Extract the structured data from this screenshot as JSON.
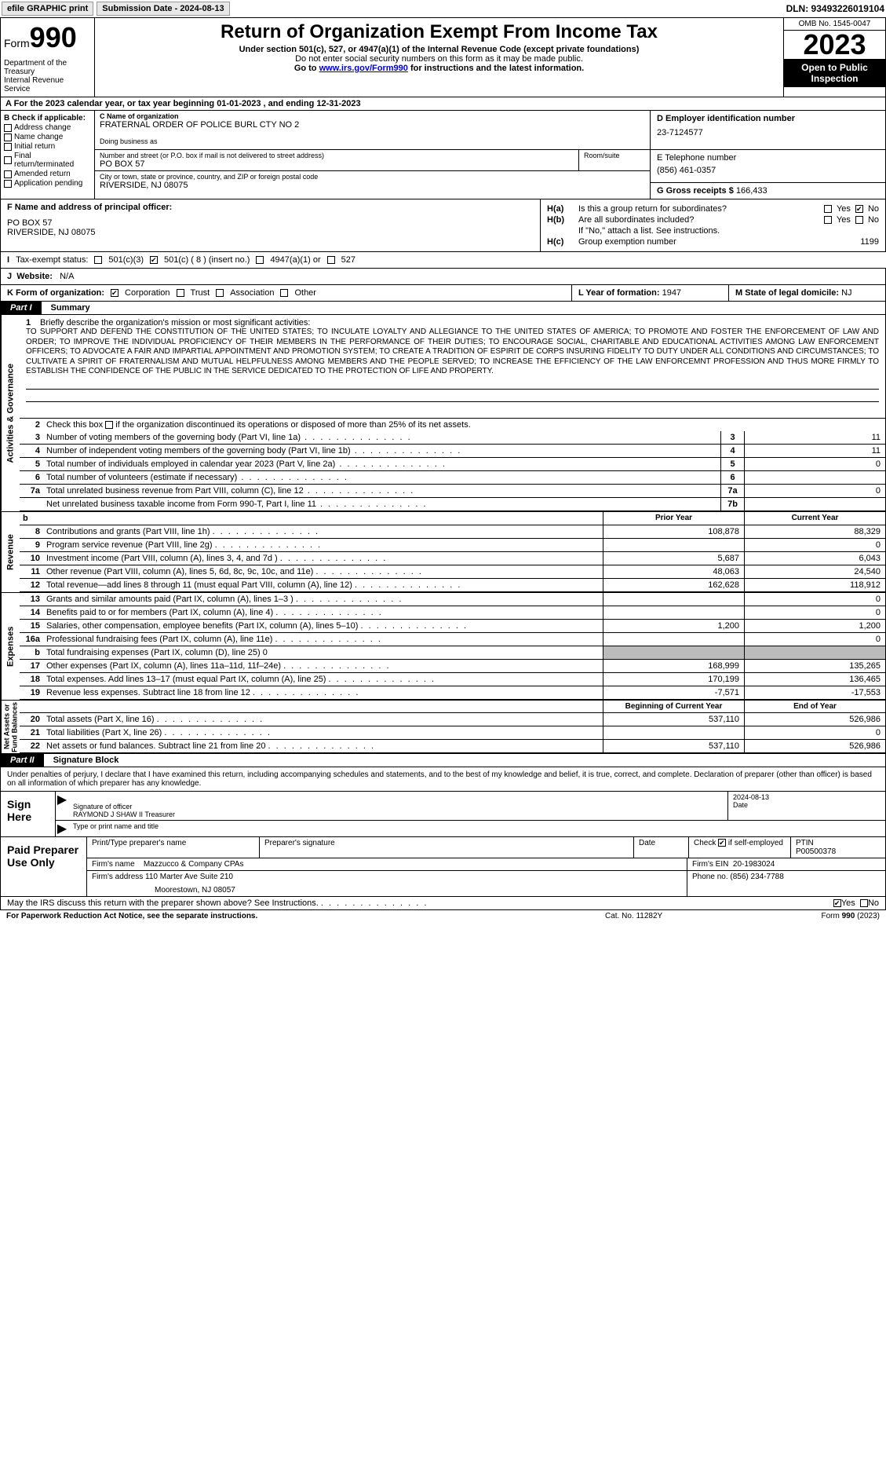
{
  "topbar": {
    "efile": "efile GRAPHIC print",
    "submission": "Submission Date - 2024-08-13",
    "dln": "DLN: 93493226019104"
  },
  "header": {
    "form_label": "Form",
    "form_num": "990",
    "title": "Return of Organization Exempt From Income Tax",
    "sub1": "Under section 501(c), 527, or 4947(a)(1) of the Internal Revenue Code (except private foundations)",
    "sub2": "Do not enter social security numbers on this form as it may be made public.",
    "sub3_pre": "Go to ",
    "sub3_link": "www.irs.gov/Form990",
    "sub3_post": " for instructions and the latest information.",
    "dept": "Department of the Treasury\nInternal Revenue Service",
    "omb": "OMB No. 1545-0047",
    "year": "2023",
    "inspect": "Open to Public Inspection"
  },
  "row_a": "A For the 2023 calendar year, or tax year beginning 01-01-2023   , and ending 12-31-2023",
  "section_b": {
    "hdr": "B Check if applicable:",
    "opts": [
      "Address change",
      "Name change",
      "Initial return",
      "Final return/terminated",
      "Amended return",
      "Application pending"
    ]
  },
  "section_c": {
    "name_lbl": "C Name of organization",
    "name": "FRATERNAL ORDER OF POLICE BURL CTY NO 2",
    "dba_lbl": "Doing business as",
    "addr_lbl": "Number and street (or P.O. box if mail is not delivered to street address)",
    "addr": "PO BOX 57",
    "room_lbl": "Room/suite",
    "city_lbl": "City or town, state or province, country, and ZIP or foreign postal code",
    "city": "RIVERSIDE, NJ  08075"
  },
  "section_d": {
    "lbl": "D Employer identification number",
    "val": "23-7124577"
  },
  "section_e": {
    "lbl": "E Telephone number",
    "val": "(856) 461-0357"
  },
  "section_g": {
    "lbl": "G Gross receipts $",
    "val": "166,433"
  },
  "section_f": {
    "lbl": "F  Name and address of principal officer:",
    "l1": "PO BOX 57",
    "l2": "RIVERSIDE, NJ  08075"
  },
  "section_h": {
    "ha": "Is this a group return for subordinates?",
    "hb": "Are all subordinates included?",
    "hb_note": "If \"No,\" attach a list. See instructions.",
    "hc": "Group exemption number",
    "hc_val": "1199",
    "yes": "Yes",
    "no": "No"
  },
  "row_i": {
    "lbl": "Tax-exempt status:",
    "o1": "501(c)(3)",
    "o2": "501(c) ( 8 ) (insert no.)",
    "o3": "4947(a)(1) or",
    "o4": "527"
  },
  "row_j": {
    "lbl": "Website:",
    "val": "N/A"
  },
  "row_k": {
    "lbl": "K Form of organization:",
    "o1": "Corporation",
    "o2": "Trust",
    "o3": "Association",
    "o4": "Other"
  },
  "row_l": {
    "lbl": "L Year of formation:",
    "val": "1947"
  },
  "row_m": {
    "lbl": "M State of legal domicile:",
    "val": "NJ"
  },
  "part1": {
    "num": "Part I",
    "title": "Summary"
  },
  "mission": {
    "lbl": "Briefly describe the organization's mission or most significant activities:",
    "text": "TO SUPPORT AND DEFEND THE CONSTITUTION OF THE UNITED STATES; TO INCULATE LOYALTY AND ALLEGIANCE TO THE UNITED STATES OF AMERICA; TO PROMOTE AND FOSTER THE ENFORCEMENT OF LAW AND ORDER; TO IMPROVE THE INDIVIDUAL PROFICIENCY OF THEIR MEMBERS IN THE PERFORMANCE OF THEIR DUTIES; TO ENCOURAGE SOCIAL, CHARITABLE AND EDUCATIONAL ACTIVITIES AMONG LAW ENFORCEMENT OFFICERS; TO ADVOCATE A FAIR AND IMPARTIAL APPOINTMENT AND PROMOTION SYSTEM; TO CREATE A TRADITION OF ESPIRIT DE CORPS INSURING FIDELITY TO DUTY UNDER ALL CONDITIONS AND CIRCUMSTANCES; TO CULTIVATE A SPIRIT OF FRATERNALISM AND MUTUAL HELPFULNESS AMONG MEMBERS AND THE PEOPLE SERVED; TO INCREASE THE EFFICIENCY OF THE LAW ENFORCEMNT PROFESSION AND THUS MORE FIRMLY TO ESTABLISH THE CONFIDENCE OF THE PUBLIC IN THE SERVICE DEDICATED TO THE PROTECTION OF LIFE AND PROPERTY."
  },
  "line2": "Check this box      if the organization discontinued its operations or disposed of more than 25% of its net assets.",
  "vtabs": {
    "ag": "Activities & Governance",
    "rev": "Revenue",
    "exp": "Expenses",
    "na": "Net Assets or\nFund Balances"
  },
  "gov_lines": [
    {
      "n": "3",
      "d": "Number of voting members of the governing body (Part VI, line 1a)",
      "bn": "3",
      "v": "11"
    },
    {
      "n": "4",
      "d": "Number of independent voting members of the governing body (Part VI, line 1b)",
      "bn": "4",
      "v": "11"
    },
    {
      "n": "5",
      "d": "Total number of individuals employed in calendar year 2023 (Part V, line 2a)",
      "bn": "5",
      "v": "0"
    },
    {
      "n": "6",
      "d": "Total number of volunteers (estimate if necessary)",
      "bn": "6",
      "v": ""
    },
    {
      "n": "7a",
      "d": "Total unrelated business revenue from Part VIII, column (C), line 12",
      "bn": "7a",
      "v": "0"
    },
    {
      "n": "",
      "d": "Net unrelated business taxable income from Form 990-T, Part I, line 11",
      "bn": "7b",
      "v": ""
    }
  ],
  "col_hdrs": {
    "b": "b",
    "py": "Prior Year",
    "cy": "Current Year",
    "bcy": "Beginning of Current Year",
    "eoy": "End of Year"
  },
  "rev_lines": [
    {
      "n": "8",
      "d": "Contributions and grants (Part VIII, line 1h)",
      "py": "108,878",
      "cy": "88,329"
    },
    {
      "n": "9",
      "d": "Program service revenue (Part VIII, line 2g)",
      "py": "",
      "cy": "0"
    },
    {
      "n": "10",
      "d": "Investment income (Part VIII, column (A), lines 3, 4, and 7d )",
      "py": "5,687",
      "cy": "6,043"
    },
    {
      "n": "11",
      "d": "Other revenue (Part VIII, column (A), lines 5, 6d, 8c, 9c, 10c, and 11e)",
      "py": "48,063",
      "cy": "24,540"
    },
    {
      "n": "12",
      "d": "Total revenue—add lines 8 through 11 (must equal Part VIII, column (A), line 12)",
      "py": "162,628",
      "cy": "118,912"
    }
  ],
  "exp_lines": [
    {
      "n": "13",
      "d": "Grants and similar amounts paid (Part IX, column (A), lines 1–3 )",
      "py": "",
      "cy": "0"
    },
    {
      "n": "14",
      "d": "Benefits paid to or for members (Part IX, column (A), line 4)",
      "py": "",
      "cy": "0"
    },
    {
      "n": "15",
      "d": "Salaries, other compensation, employee benefits (Part IX, column (A), lines 5–10)",
      "py": "1,200",
      "cy": "1,200"
    },
    {
      "n": "16a",
      "d": "Professional fundraising fees (Part IX, column (A), line 11e)",
      "py": "",
      "cy": "0"
    },
    {
      "n": "b",
      "d": "Total fundraising expenses (Part IX, column (D), line 25) 0",
      "py": "shaded",
      "cy": "shaded"
    },
    {
      "n": "17",
      "d": "Other expenses (Part IX, column (A), lines 11a–11d, 11f–24e)",
      "py": "168,999",
      "cy": "135,265"
    },
    {
      "n": "18",
      "d": "Total expenses. Add lines 13–17 (must equal Part IX, column (A), line 25)",
      "py": "170,199",
      "cy": "136,465"
    },
    {
      "n": "19",
      "d": "Revenue less expenses. Subtract line 18 from line 12",
      "py": "-7,571",
      "cy": "-17,553"
    }
  ],
  "na_lines": [
    {
      "n": "20",
      "d": "Total assets (Part X, line 16)",
      "py": "537,110",
      "cy": "526,986"
    },
    {
      "n": "21",
      "d": "Total liabilities (Part X, line 26)",
      "py": "",
      "cy": "0"
    },
    {
      "n": "22",
      "d": "Net assets or fund balances. Subtract line 21 from line 20",
      "py": "537,110",
      "cy": "526,986"
    }
  ],
  "part2": {
    "num": "Part II",
    "title": "Signature Block"
  },
  "sig": {
    "intro": "Under penalties of perjury, I declare that I have examined this return, including accompanying schedules and statements, and to the best of my knowledge and belief, it is true, correct, and complete. Declaration of preparer (other than officer) is based on all information of which preparer has any knowledge.",
    "sign_here": "Sign Here",
    "sig_lbl": "Signature of officer",
    "date_lbl": "Date",
    "date_val": "2024-08-13",
    "name": "RAYMOND J SHAW II Treasurer",
    "name_lbl": "Type or print name and title"
  },
  "prep": {
    "hdr": "Paid Preparer Use Only",
    "c1": "Print/Type preparer's name",
    "c2": "Preparer's signature",
    "c3": "Date",
    "c4a": "Check",
    "c4b": "if self-employed",
    "c5": "PTIN",
    "ptin": "P00500378",
    "firm_lbl": "Firm's name",
    "firm": "Mazzucco & Company CPAs",
    "ein_lbl": "Firm's EIN",
    "ein": "20-1983024",
    "addr_lbl": "Firm's address",
    "addr1": "110 Marter Ave Suite 210",
    "addr2": "Moorestown, NJ  08057",
    "phone_lbl": "Phone no.",
    "phone": "(856) 234-7788"
  },
  "footer": {
    "q": "May the IRS discuss this return with the preparer shown above? See Instructions.",
    "yes": "Yes",
    "no": "No",
    "pra": "For Paperwork Reduction Act Notice, see the separate instructions.",
    "cat": "Cat. No. 11282Y",
    "form": "Form 990 (2023)"
  }
}
